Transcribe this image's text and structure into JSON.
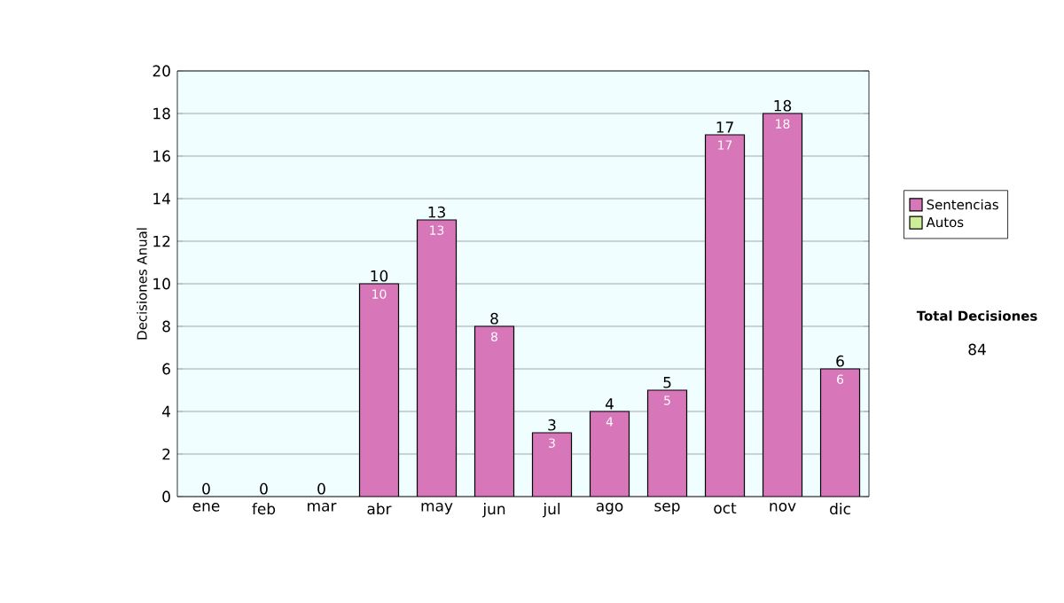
{
  "chart_data": {
    "type": "bar",
    "ylabel": "Decisiones Anual",
    "categories": [
      "ene",
      "feb",
      "mar",
      "abr",
      "may",
      "jun",
      "jul",
      "ago",
      "sep",
      "oct",
      "nov",
      "dic"
    ],
    "stacked": true,
    "series": [
      {
        "name": "Sentencias",
        "color": "#d776b9",
        "values": [
          0,
          0,
          0,
          10,
          13,
          8,
          3,
          4,
          5,
          17,
          18,
          6
        ],
        "value_labels": [
          null,
          null,
          null,
          "10",
          "13",
          "8",
          "3",
          "4",
          "5",
          "17",
          "18",
          "6"
        ]
      },
      {
        "name": "Autos",
        "color": "#ccee99",
        "values": [
          0,
          0,
          0,
          0,
          0,
          0,
          0,
          0,
          0,
          0,
          0,
          0
        ]
      }
    ],
    "totals": [
      "0",
      "0",
      "0",
      "10",
      "13",
      "8",
      "3",
      "4",
      "5",
      "17",
      "18",
      "6"
    ],
    "ylim": [
      0,
      20
    ],
    "yticks": [
      0,
      2,
      4,
      6,
      8,
      10,
      12,
      14,
      16,
      18,
      20
    ],
    "grid": "y",
    "legend": "right",
    "annotations": [
      "Total Decisiones",
      "84"
    ]
  }
}
